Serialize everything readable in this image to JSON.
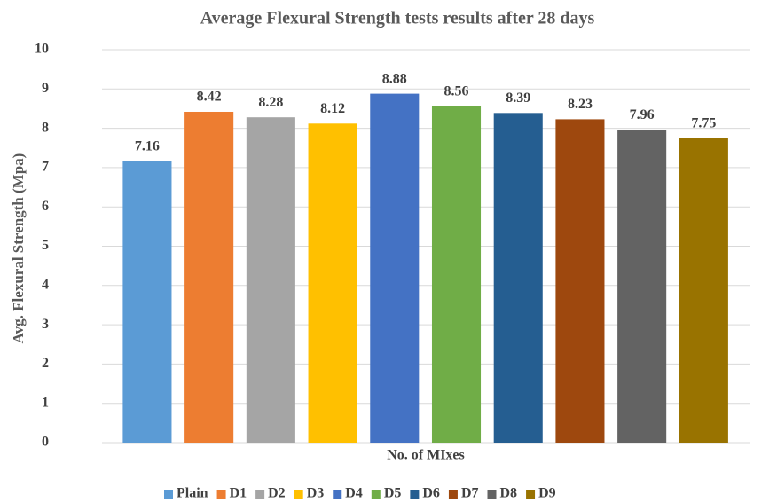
{
  "chart_data": {
    "type": "bar",
    "title": "Average Flexural Strength tests results after 28 days",
    "x_label": "No. of MIxes",
    "y_label": "Avg. Flexural Strength (Mpa)",
    "categories": [
      null
    ],
    "series": [
      {
        "name": "Plain",
        "color": "#5b9bd5",
        "values": [
          7.16
        ]
      },
      {
        "name": "D1",
        "color": "#ed7d31",
        "values": [
          8.42
        ]
      },
      {
        "name": "D2",
        "color": "#a5a5a5",
        "values": [
          8.28
        ]
      },
      {
        "name": "D3",
        "color": "#ffc000",
        "values": [
          8.12
        ]
      },
      {
        "name": "D4",
        "color": "#4472c4",
        "values": [
          8.88
        ]
      },
      {
        "name": "D5",
        "color": "#70ad47",
        "values": [
          8.56
        ]
      },
      {
        "name": "D6",
        "color": "#255e91",
        "values": [
          8.39
        ]
      },
      {
        "name": "D7",
        "color": "#9e480e",
        "values": [
          8.23
        ]
      },
      {
        "name": "D8",
        "color": "#636363",
        "values": [
          7.96
        ]
      },
      {
        "name": "D9",
        "color": "#997300",
        "values": [
          7.75
        ]
      }
    ],
    "ylim": [
      0,
      10
    ],
    "yticks": [
      0,
      1,
      2,
      3,
      4,
      5,
      6,
      7,
      8,
      9,
      10
    ],
    "grid": true,
    "legend": "bottom"
  }
}
